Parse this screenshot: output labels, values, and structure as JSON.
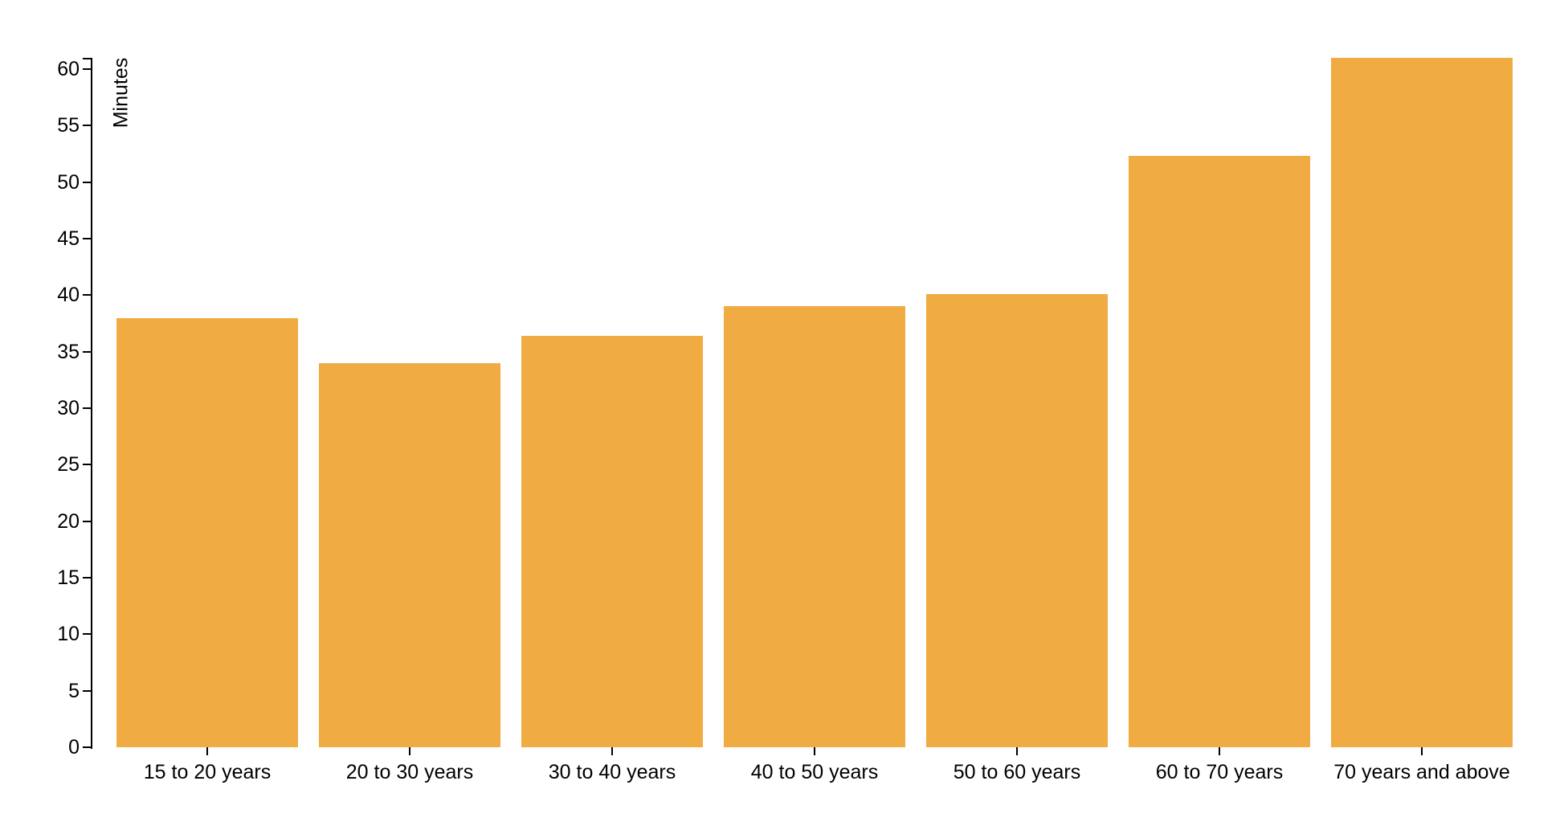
{
  "chart_data": {
    "type": "bar",
    "title": "",
    "xlabel": "",
    "ylabel": "Minutes",
    "categories": [
      "15 to 20 years",
      "20 to 30 years",
      "30 to 40 years",
      "40 to 50 years",
      "50 to 60 years",
      "60 to 70 years",
      "70 years and above"
    ],
    "values": [
      38,
      34,
      36.4,
      39,
      40.1,
      52.3,
      61
    ],
    "ylim": [
      0,
      61
    ],
    "yticks": [
      0,
      5,
      10,
      15,
      20,
      25,
      30,
      35,
      40,
      45,
      50,
      55,
      60
    ],
    "grid": false,
    "legend_position": "none",
    "bar_color": "#F0AB42",
    "axis_color": "#000000",
    "background_color": "#FFFFFF"
  }
}
